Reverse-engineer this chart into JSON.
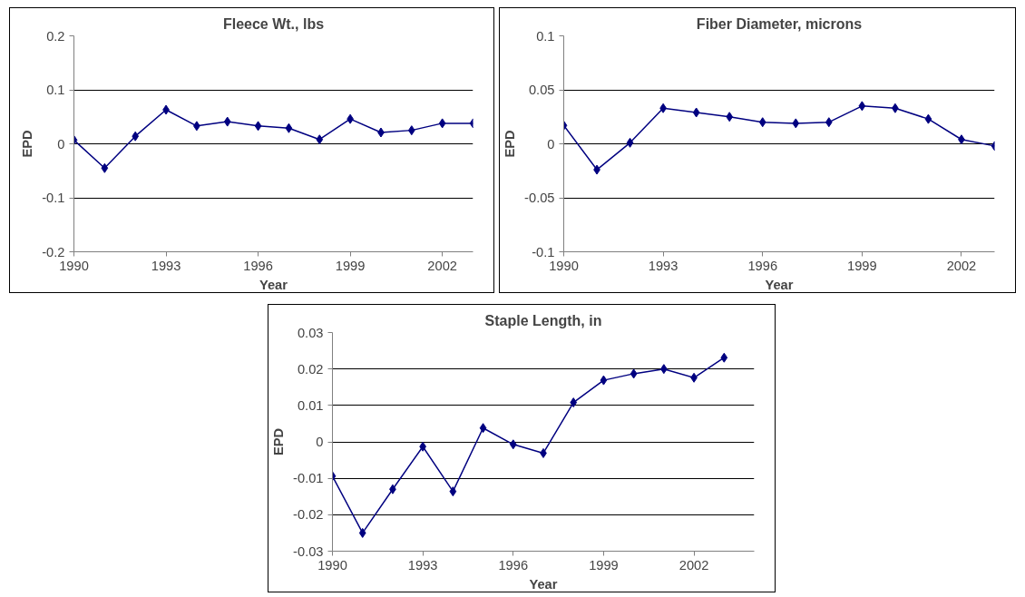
{
  "chart_data": [
    {
      "type": "line",
      "title": "Fleece Wt., lbs",
      "xlabel": "Year",
      "ylabel": "EPD",
      "x": [
        1990,
        1991,
        1992,
        1993,
        1994,
        1995,
        1996,
        1997,
        1998,
        1999,
        2000,
        2001,
        2002,
        2003
      ],
      "series": [
        {
          "color": "#000080",
          "values": [
            0.007,
            -0.045,
            0.014,
            0.063,
            0.033,
            0.041,
            0.033,
            0.029,
            0.008,
            0.046,
            0.021,
            0.025,
            0.038,
            0.038
          ]
        }
      ],
      "xlim": [
        1990,
        2003
      ],
      "xticks": [
        1990,
        1993,
        1996,
        1999,
        2002
      ],
      "ylim": [
        -0.2,
        0.2
      ],
      "yticks": [
        -0.2,
        -0.1,
        0,
        0.1,
        0.2
      ],
      "grid": "y",
      "marker": "diamond",
      "line_style": "solid"
    },
    {
      "type": "line",
      "title": "Fiber Diameter, microns",
      "xlabel": "Year",
      "ylabel": "EPD",
      "x": [
        1990,
        1991,
        1992,
        1993,
        1994,
        1995,
        1996,
        1997,
        1998,
        1999,
        2000,
        2001,
        2002,
        2003
      ],
      "series": [
        {
          "color": "#000080",
          "values": [
            0.017,
            -0.024,
            0.001,
            0.033,
            0.029,
            0.025,
            0.02,
            0.019,
            0.02,
            0.035,
            0.033,
            0.023,
            0.004,
            -0.002
          ]
        }
      ],
      "xlim": [
        1990,
        2003
      ],
      "xticks": [
        1990,
        1993,
        1996,
        1999,
        2002
      ],
      "ylim": [
        -0.1,
        0.1
      ],
      "yticks": [
        -0.1,
        -0.05,
        0,
        0.05,
        0.1
      ],
      "grid": "y",
      "marker": "diamond",
      "line_style": "solid"
    },
    {
      "type": "line",
      "title": "Staple Length, in",
      "xlabel": "Year",
      "ylabel": "EPD",
      "x": [
        1990,
        1991,
        1992,
        1993,
        1994,
        1995,
        1996,
        1997,
        1998,
        1999,
        2000,
        2001,
        2002,
        2003
      ],
      "series": [
        {
          "color": "#000080",
          "values": [
            -0.0094,
            -0.025,
            -0.013,
            -0.0013,
            -0.0136,
            0.0038,
            -0.0007,
            -0.0031,
            0.0108,
            0.0169,
            0.0187,
            0.02,
            0.0176,
            0.0231
          ]
        }
      ],
      "xlim": [
        1990,
        2004
      ],
      "xticks": [
        1990,
        1993,
        1996,
        1999,
        2002
      ],
      "ylim": [
        -0.03,
        0.03
      ],
      "yticks": [
        -0.03,
        -0.02,
        -0.01,
        0,
        0.01,
        0.02,
        0.03
      ],
      "grid": "y",
      "marker": "diamond",
      "line_style": "solid"
    }
  ]
}
